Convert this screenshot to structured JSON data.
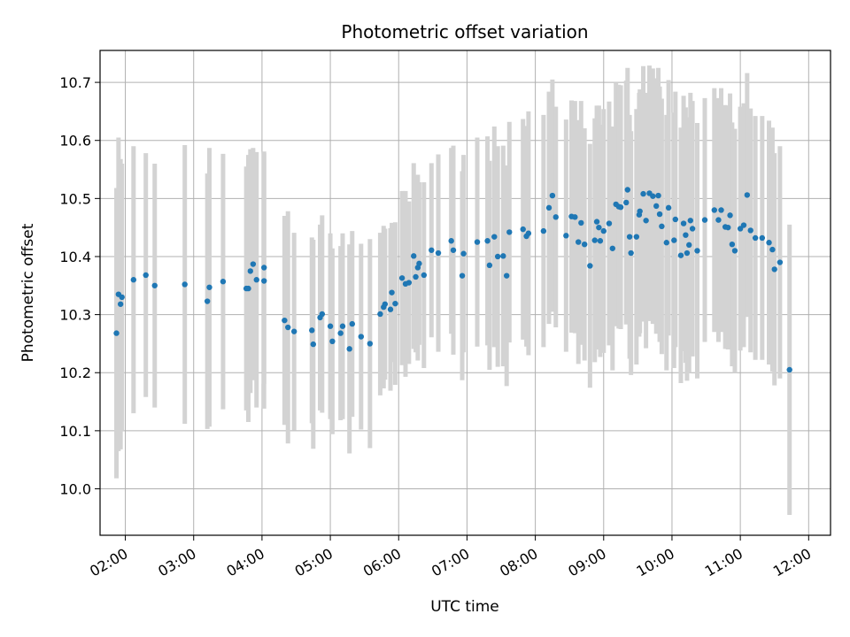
{
  "chart_data": {
    "type": "scatter",
    "title": "Photometric offset variation",
    "xlabel": "UTC time",
    "ylabel": "Photometric offset",
    "x_unit": "hour (UTC, decimal)",
    "xlim": [
      1.63,
      12.32
    ],
    "ylim": [
      9.92,
      10.755
    ],
    "x_ticks": [
      2,
      3,
      4,
      5,
      6,
      7,
      8,
      9,
      10,
      11,
      12
    ],
    "x_tick_labels": [
      "02:00",
      "03:00",
      "04:00",
      "05:00",
      "06:00",
      "07:00",
      "08:00",
      "09:00",
      "10:00",
      "11:00",
      "12:00"
    ],
    "y_ticks": [
      10.0,
      10.1,
      10.2,
      10.3,
      10.4,
      10.5,
      10.6,
      10.7
    ],
    "y_tick_labels": [
      "10.0",
      "10.1",
      "10.2",
      "10.3",
      "10.4",
      "10.5",
      "10.6",
      "10.7"
    ],
    "grid": true,
    "point_color": "#1f77b4",
    "errorbar_color": "#d3d3d3",
    "points": [
      [
        1.87,
        10.268,
        0.25
      ],
      [
        1.9,
        10.335,
        0.27
      ],
      [
        1.93,
        10.318,
        0.25
      ],
      [
        1.95,
        10.33,
        0.23
      ],
      [
        2.12,
        10.36,
        0.23
      ],
      [
        2.3,
        10.368,
        0.21
      ],
      [
        2.43,
        10.35,
        0.21
      ],
      [
        2.87,
        10.352,
        0.24
      ],
      [
        3.2,
        10.323,
        0.22
      ],
      [
        3.23,
        10.347,
        0.24
      ],
      [
        3.43,
        10.357,
        0.22
      ],
      [
        3.77,
        10.345,
        0.21
      ],
      [
        3.8,
        10.345,
        0.23
      ],
      [
        3.83,
        10.375,
        0.21
      ],
      [
        3.87,
        10.387,
        0.2
      ],
      [
        3.92,
        10.36,
        0.22
      ],
      [
        4.03,
        10.358,
        0.22
      ],
      [
        4.03,
        10.381,
        0.2
      ],
      [
        4.33,
        10.29,
        0.18
      ],
      [
        4.38,
        10.278,
        0.2
      ],
      [
        4.47,
        10.271,
        0.17
      ],
      [
        4.73,
        10.273,
        0.16
      ],
      [
        4.75,
        10.249,
        0.18
      ],
      [
        4.85,
        10.295,
        0.16
      ],
      [
        4.88,
        10.301,
        0.17
      ],
      [
        5.0,
        10.28,
        0.16
      ],
      [
        5.03,
        10.254,
        0.16
      ],
      [
        5.15,
        10.268,
        0.15
      ],
      [
        5.18,
        10.28,
        0.16
      ],
      [
        5.28,
        10.241,
        0.18
      ],
      [
        5.32,
        10.284,
        0.16
      ],
      [
        5.45,
        10.262,
        0.16
      ],
      [
        5.58,
        10.25,
        0.18
      ],
      [
        5.73,
        10.301,
        0.14
      ],
      [
        5.78,
        10.313,
        0.14
      ],
      [
        5.8,
        10.318,
        0.13
      ],
      [
        5.88,
        10.309,
        0.14
      ],
      [
        5.9,
        10.338,
        0.12
      ],
      [
        5.95,
        10.319,
        0.14
      ],
      [
        6.05,
        10.363,
        0.15
      ],
      [
        6.1,
        10.353,
        0.16
      ],
      [
        6.15,
        10.355,
        0.14
      ],
      [
        6.22,
        10.401,
        0.16
      ],
      [
        6.25,
        10.365,
        0.13
      ],
      [
        6.28,
        10.381,
        0.16
      ],
      [
        6.3,
        10.388,
        0.14
      ],
      [
        6.37,
        10.368,
        0.16
      ],
      [
        6.48,
        10.411,
        0.15
      ],
      [
        6.58,
        10.406,
        0.17
      ],
      [
        6.77,
        10.427,
        0.16
      ],
      [
        6.8,
        10.411,
        0.18
      ],
      [
        6.93,
        10.367,
        0.18
      ],
      [
        6.95,
        10.405,
        0.17
      ],
      [
        7.15,
        10.425,
        0.18
      ],
      [
        7.3,
        10.427,
        0.18
      ],
      [
        7.33,
        10.385,
        0.18
      ],
      [
        7.4,
        10.434,
        0.19
      ],
      [
        7.45,
        10.4,
        0.19
      ],
      [
        7.53,
        10.401,
        0.19
      ],
      [
        7.58,
        10.367,
        0.19
      ],
      [
        7.62,
        10.442,
        0.19
      ],
      [
        7.82,
        10.447,
        0.19
      ],
      [
        7.87,
        10.435,
        0.19
      ],
      [
        7.9,
        10.44,
        0.21
      ],
      [
        8.12,
        10.444,
        0.2
      ],
      [
        8.2,
        10.484,
        0.2
      ],
      [
        8.25,
        10.505,
        0.2
      ],
      [
        8.3,
        10.468,
        0.19
      ],
      [
        8.45,
        10.436,
        0.2
      ],
      [
        8.53,
        10.469,
        0.2
      ],
      [
        8.58,
        10.468,
        0.2
      ],
      [
        8.63,
        10.425,
        0.21
      ],
      [
        8.67,
        10.458,
        0.21
      ],
      [
        8.72,
        10.421,
        0.2
      ],
      [
        8.8,
        10.384,
        0.21
      ],
      [
        8.87,
        10.428,
        0.21
      ],
      [
        8.9,
        10.46,
        0.2
      ],
      [
        8.93,
        10.45,
        0.21
      ],
      [
        8.95,
        10.427,
        0.2
      ],
      [
        9.0,
        10.444,
        0.21
      ],
      [
        9.08,
        10.457,
        0.21
      ],
      [
        9.13,
        10.414,
        0.21
      ],
      [
        9.18,
        10.49,
        0.21
      ],
      [
        9.22,
        10.486,
        0.21
      ],
      [
        9.25,
        10.485,
        0.21
      ],
      [
        9.33,
        10.493,
        0.21
      ],
      [
        9.35,
        10.515,
        0.21
      ],
      [
        9.38,
        10.434,
        0.21
      ],
      [
        9.4,
        10.406,
        0.21
      ],
      [
        9.48,
        10.434,
        0.22
      ],
      [
        9.52,
        10.472,
        0.21
      ],
      [
        9.53,
        10.478,
        0.21
      ],
      [
        9.58,
        10.508,
        0.22
      ],
      [
        9.62,
        10.462,
        0.22
      ],
      [
        9.67,
        10.509,
        0.22
      ],
      [
        9.72,
        10.504,
        0.22
      ],
      [
        9.77,
        10.487,
        0.22
      ],
      [
        9.8,
        10.505,
        0.22
      ],
      [
        9.82,
        10.473,
        0.22
      ],
      [
        9.85,
        10.452,
        0.22
      ],
      [
        9.92,
        10.424,
        0.22
      ],
      [
        9.95,
        10.484,
        0.22
      ],
      [
        10.03,
        10.428,
        0.22
      ],
      [
        10.05,
        10.464,
        0.22
      ],
      [
        10.13,
        10.402,
        0.22
      ],
      [
        10.17,
        10.457,
        0.22
      ],
      [
        10.2,
        10.437,
        0.22
      ],
      [
        10.22,
        10.406,
        0.22
      ],
      [
        10.25,
        10.42,
        0.22
      ],
      [
        10.27,
        10.462,
        0.22
      ],
      [
        10.3,
        10.448,
        0.22
      ],
      [
        10.37,
        10.41,
        0.22
      ],
      [
        10.48,
        10.463,
        0.21
      ],
      [
        10.62,
        10.48,
        0.21
      ],
      [
        10.68,
        10.463,
        0.21
      ],
      [
        10.72,
        10.48,
        0.21
      ],
      [
        10.78,
        10.451,
        0.21
      ],
      [
        10.82,
        10.45,
        0.21
      ],
      [
        10.85,
        10.471,
        0.21
      ],
      [
        10.88,
        10.421,
        0.21
      ],
      [
        10.92,
        10.41,
        0.21
      ],
      [
        11.0,
        10.448,
        0.21
      ],
      [
        11.05,
        10.454,
        0.21
      ],
      [
        11.1,
        10.506,
        0.21
      ],
      [
        11.15,
        10.445,
        0.21
      ],
      [
        11.22,
        10.432,
        0.21
      ],
      [
        11.32,
        10.432,
        0.21
      ],
      [
        11.42,
        10.424,
        0.21
      ],
      [
        11.47,
        10.412,
        0.21
      ],
      [
        11.5,
        10.378,
        0.2
      ],
      [
        11.58,
        10.39,
        0.2
      ],
      [
        11.72,
        10.205,
        0.25
      ]
    ]
  }
}
